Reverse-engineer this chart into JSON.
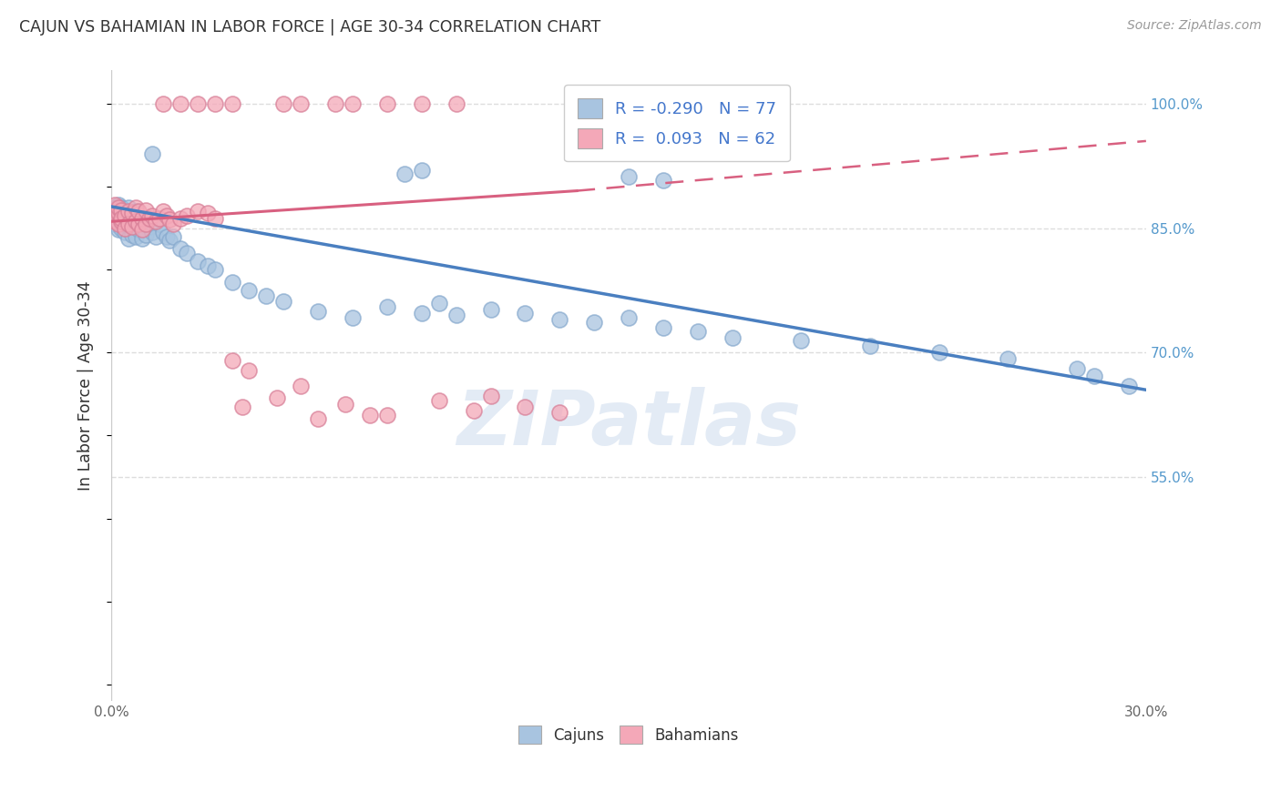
{
  "title": "CAJUN VS BAHAMIAN IN LABOR FORCE | AGE 30-34 CORRELATION CHART",
  "source": "Source: ZipAtlas.com",
  "ylabel": "In Labor Force | Age 30-34",
  "xlim": [
    0.0,
    0.3
  ],
  "ylim": [
    0.28,
    1.04
  ],
  "xticks": [
    0.0,
    0.05,
    0.1,
    0.15,
    0.2,
    0.25,
    0.3
  ],
  "xtick_labels": [
    "0.0%",
    "",
    "",
    "",
    "",
    "",
    "30.0%"
  ],
  "ytick_labels_right": [
    "100.0%",
    "85.0%",
    "70.0%",
    "55.0%"
  ],
  "ytick_vals_right": [
    1.0,
    0.85,
    0.7,
    0.55
  ],
  "grid_color": "#dddddd",
  "background_color": "#ffffff",
  "cajun_color": "#a8c4e0",
  "cajun_edge_color": "#88aace",
  "bahamian_color": "#f4a8b8",
  "bahamian_edge_color": "#d88098",
  "cajun_line_color": "#4a7fc0",
  "bahamian_line_color": "#d86080",
  "legend_R_cajun": "-0.290",
  "legend_N_cajun": "77",
  "legend_R_bahamian": "0.093",
  "legend_N_bahamian": "62",
  "watermark": "ZIPatlas",
  "watermark_color": "#c8d8ec",
  "cajun_trend": [
    0.0,
    0.3,
    0.876,
    0.655
  ],
  "bahamian_solid_trend": [
    0.0,
    0.135,
    0.858,
    0.895
  ],
  "bahamian_dash_trend": [
    0.135,
    0.3,
    0.895,
    0.955
  ],
  "cajun_x": [
    0.001,
    0.001,
    0.001,
    0.001,
    0.002,
    0.002,
    0.002,
    0.002,
    0.002,
    0.003,
    0.003,
    0.003,
    0.003,
    0.003,
    0.004,
    0.004,
    0.004,
    0.004,
    0.005,
    0.005,
    0.005,
    0.005,
    0.006,
    0.006,
    0.006,
    0.007,
    0.007,
    0.007,
    0.008,
    0.008,
    0.009,
    0.009,
    0.01,
    0.01,
    0.011,
    0.012,
    0.013,
    0.014,
    0.015,
    0.016,
    0.017,
    0.018,
    0.02,
    0.022,
    0.025,
    0.028,
    0.03,
    0.035,
    0.04,
    0.045,
    0.05,
    0.06,
    0.07,
    0.08,
    0.09,
    0.095,
    0.1,
    0.11,
    0.12,
    0.13,
    0.14,
    0.15,
    0.16,
    0.17,
    0.18,
    0.2,
    0.22,
    0.24,
    0.26,
    0.28,
    0.285,
    0.295,
    0.012,
    0.085,
    0.09,
    0.15,
    0.16
  ],
  "cajun_y": [
    0.865,
    0.87,
    0.855,
    0.875,
    0.862,
    0.878,
    0.858,
    0.872,
    0.848,
    0.87,
    0.86,
    0.875,
    0.85,
    0.865,
    0.872,
    0.855,
    0.868,
    0.845,
    0.875,
    0.862,
    0.852,
    0.838,
    0.868,
    0.855,
    0.842,
    0.87,
    0.858,
    0.84,
    0.865,
    0.848,
    0.855,
    0.838,
    0.862,
    0.842,
    0.852,
    0.845,
    0.84,
    0.855,
    0.845,
    0.84,
    0.835,
    0.84,
    0.825,
    0.82,
    0.81,
    0.805,
    0.8,
    0.785,
    0.775,
    0.768,
    0.762,
    0.75,
    0.742,
    0.755,
    0.748,
    0.76,
    0.745,
    0.752,
    0.748,
    0.74,
    0.736,
    0.742,
    0.73,
    0.725,
    0.718,
    0.715,
    0.708,
    0.7,
    0.693,
    0.68,
    0.672,
    0.66,
    0.94,
    0.915,
    0.92,
    0.912,
    0.908
  ],
  "bahamian_x": [
    0.001,
    0.001,
    0.001,
    0.002,
    0.002,
    0.002,
    0.003,
    0.003,
    0.003,
    0.004,
    0.004,
    0.005,
    0.005,
    0.006,
    0.006,
    0.007,
    0.007,
    0.008,
    0.008,
    0.009,
    0.009,
    0.01,
    0.01,
    0.011,
    0.012,
    0.013,
    0.014,
    0.015,
    0.016,
    0.017,
    0.018,
    0.02,
    0.022,
    0.025,
    0.028,
    0.03,
    0.015,
    0.02,
    0.025,
    0.03,
    0.035,
    0.05,
    0.055,
    0.065,
    0.07,
    0.08,
    0.09,
    0.1,
    0.11,
    0.12,
    0.13,
    0.035,
    0.04,
    0.048,
    0.055,
    0.068,
    0.08,
    0.095,
    0.105,
    0.038,
    0.06,
    0.075
  ],
  "bahamian_y": [
    0.87,
    0.858,
    0.878,
    0.868,
    0.855,
    0.875,
    0.872,
    0.858,
    0.862,
    0.865,
    0.85,
    0.87,
    0.855,
    0.868,
    0.852,
    0.875,
    0.858,
    0.87,
    0.855,
    0.862,
    0.848,
    0.872,
    0.855,
    0.862,
    0.865,
    0.858,
    0.862,
    0.87,
    0.865,
    0.86,
    0.855,
    0.862,
    0.865,
    0.87,
    0.868,
    0.862,
    1.0,
    1.0,
    1.0,
    1.0,
    1.0,
    1.0,
    1.0,
    1.0,
    1.0,
    1.0,
    1.0,
    1.0,
    0.648,
    0.635,
    0.628,
    0.69,
    0.678,
    0.645,
    0.66,
    0.638,
    0.625,
    0.642,
    0.63,
    0.635,
    0.62,
    0.625
  ]
}
